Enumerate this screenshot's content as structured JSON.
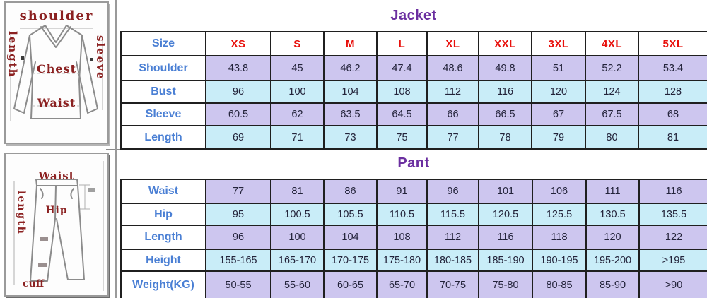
{
  "jacket": {
    "title": "Jacket",
    "size_label": "Size",
    "sizes": [
      "XS",
      "S",
      "M",
      "L",
      "XL",
      "XXL",
      "3XL",
      "4XL",
      "5XL"
    ],
    "rows": [
      {
        "label": "Shoulder",
        "values": [
          "43.8",
          "45",
          "46.2",
          "47.4",
          "48.6",
          "49.8",
          "51",
          "52.2",
          "53.4"
        ]
      },
      {
        "label": "Bust",
        "values": [
          "96",
          "100",
          "104",
          "108",
          "112",
          "116",
          "120",
          "124",
          "128"
        ]
      },
      {
        "label": "Sleeve",
        "values": [
          "60.5",
          "62",
          "63.5",
          "64.5",
          "66",
          "66.5",
          "67",
          "67.5",
          "68"
        ]
      },
      {
        "label": "Length",
        "values": [
          "69",
          "71",
          "73",
          "75",
          "77",
          "78",
          "79",
          "80",
          "81"
        ]
      }
    ]
  },
  "pant": {
    "title": "Pant",
    "rows": [
      {
        "label": "Waist",
        "values": [
          "77",
          "81",
          "86",
          "91",
          "96",
          "101",
          "106",
          "111",
          "116"
        ]
      },
      {
        "label": "Hip",
        "values": [
          "95",
          "100.5",
          "105.5",
          "110.5",
          "115.5",
          "120.5",
          "125.5",
          "130.5",
          "135.5"
        ]
      },
      {
        "label": "Length",
        "values": [
          "96",
          "100",
          "104",
          "108",
          "112",
          "116",
          "118",
          "120",
          "122"
        ]
      },
      {
        "label": "Height",
        "values": [
          "155-165",
          "165-170",
          "170-175",
          "175-180",
          "180-185",
          "185-190",
          "190-195",
          "195-200",
          ">195"
        ]
      },
      {
        "label": "Weight(KG)",
        "values": [
          "50-55",
          "55-60",
          "60-65",
          "65-70",
          "70-75",
          "75-80",
          "80-85",
          "85-90",
          ">90"
        ]
      }
    ]
  },
  "diagrams": {
    "jacket": {
      "top_label": "shoulder",
      "left_label": "length",
      "right_label": "sleeve",
      "chest_label": "Chest",
      "waist_label": "Waist"
    },
    "pant": {
      "top_label": "Waist",
      "left_label": "length",
      "hip_label": "Hip",
      "cuff_label": "cuff"
    }
  },
  "colors": {
    "header_purple": "#6B2FA0",
    "size_red": "#E8100C",
    "label_blue": "#4A7FD4",
    "row_lavender": "#CDC6EF",
    "row_cyan": "#C9EDF8",
    "cell_text": "#23233A",
    "grid_border": "#1F1F1F",
    "diagram_red": "#8B2121",
    "sketch_gray": "#8C8C8C"
  }
}
